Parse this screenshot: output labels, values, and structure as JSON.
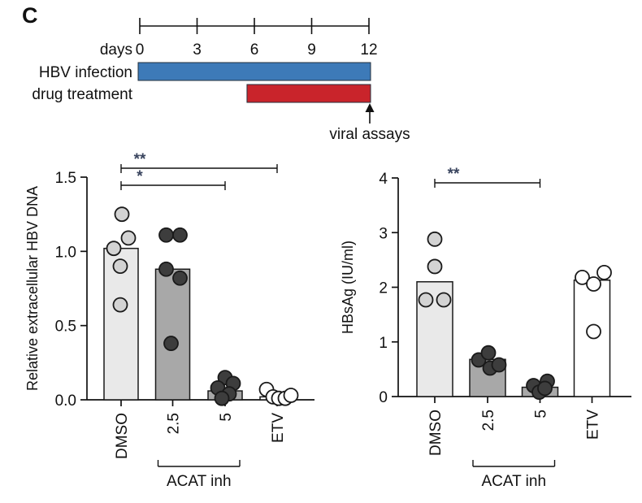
{
  "panel_label": "C",
  "timeline": {
    "axis_label": "days",
    "day_min": 0,
    "day_max": 12,
    "ticks": [
      0,
      3,
      6,
      9,
      12
    ],
    "rows": [
      {
        "label": "HBV infection",
        "start": 0,
        "end": 12,
        "color": "#3d7ab8"
      },
      {
        "label": "drug treatment",
        "start": 5.7,
        "end": 12,
        "color": "#c9242b"
      }
    ],
    "annotation": {
      "label": "viral assays",
      "day": 12
    }
  },
  "chart_data": [
    {
      "type": "bar",
      "id": "extracellular-hbv-dna",
      "ylabel": "Relative extracellular HBV DNA",
      "xlabel": "",
      "ylim": [
        0,
        1.5
      ],
      "yticks": [
        0.0,
        0.5,
        1.0,
        1.5
      ],
      "ytick_labels": [
        "0.0",
        "0.5",
        "1.0",
        "1.5"
      ],
      "categories": [
        "DMSO",
        "2.5",
        "5",
        "ETV"
      ],
      "bar_values": [
        1.02,
        0.88,
        0.06,
        0.02
      ],
      "bar_colors": [
        "#e9e9e9",
        "#a8a8a8",
        "#a8a8a8",
        "#ffffff"
      ],
      "point_colors": [
        "#d3d3d3",
        "#3d3d3d",
        "#3d3d3d",
        "#ffffff"
      ],
      "points": [
        [
          {
            "dx": 1,
            "v": 1.25
          },
          {
            "dx": 9,
            "v": 1.09
          },
          {
            "dx": -9,
            "v": 1.02
          },
          {
            "dx": -1,
            "v": 0.9
          },
          {
            "dx": -1,
            "v": 0.64
          }
        ],
        [
          {
            "dx": -8,
            "v": 1.11
          },
          {
            "dx": 9,
            "v": 1.11
          },
          {
            "dx": -8,
            "v": 0.88
          },
          {
            "dx": 9,
            "v": 0.82
          },
          {
            "dx": -2,
            "v": 0.38
          }
        ],
        [
          {
            "dx": 0,
            "v": 0.15
          },
          {
            "dx": 10,
            "v": 0.11
          },
          {
            "dx": -9,
            "v": 0.08
          },
          {
            "dx": 5,
            "v": 0.04
          },
          {
            "dx": -4,
            "v": 0.01
          }
        ],
        [
          {
            "dx": -13,
            "v": 0.07
          },
          {
            "dx": -5,
            "v": 0.02
          },
          {
            "dx": 2,
            "v": 0.01
          },
          {
            "dx": 10,
            "v": 0.01
          },
          {
            "dx": 17,
            "v": 0.03
          }
        ]
      ],
      "brackets": [
        {
          "from": 0,
          "to": 3,
          "label": "**"
        },
        {
          "from": 0,
          "to": 2,
          "label": "*"
        }
      ],
      "group_label": {
        "text": "ACAT inh",
        "from": 1,
        "to": 2
      },
      "legend": "none",
      "grid": false
    },
    {
      "type": "bar",
      "id": "hbsag",
      "ylabel": "HBsAg (IU/ml)",
      "xlabel": "",
      "ylim": [
        0,
        4
      ],
      "yticks": [
        0,
        1,
        2,
        3,
        4
      ],
      "ytick_labels": [
        "0",
        "1",
        "2",
        "3",
        "4"
      ],
      "categories": [
        "DMSO",
        "2.5",
        "5",
        "ETV"
      ],
      "bar_values": [
        2.1,
        0.68,
        0.17,
        2.13
      ],
      "bar_colors": [
        "#e9e9e9",
        "#a8a8a8",
        "#a8a8a8",
        "#ffffff"
      ],
      "point_colors": [
        "#d3d3d3",
        "#3d3d3d",
        "#3d3d3d",
        "#ffffff"
      ],
      "points": [
        [
          {
            "dx": 0,
            "v": 2.88
          },
          {
            "dx": 0,
            "v": 2.38
          },
          {
            "dx": -11,
            "v": 1.77
          },
          {
            "dx": 11,
            "v": 1.77
          }
        ],
        [
          {
            "dx": -11,
            "v": 0.67
          },
          {
            "dx": 1,
            "v": 0.8
          },
          {
            "dx": 3,
            "v": 0.52
          },
          {
            "dx": 14,
            "v": 0.58
          }
        ],
        [
          {
            "dx": -8,
            "v": 0.2
          },
          {
            "dx": 9,
            "v": 0.28
          },
          {
            "dx": -1,
            "v": 0.08
          },
          {
            "dx": 6,
            "v": 0.15
          }
        ],
        [
          {
            "dx": -12,
            "v": 2.18
          },
          {
            "dx": 15,
            "v": 2.27
          },
          {
            "dx": 2,
            "v": 2.06
          },
          {
            "dx": 2,
            "v": 1.19
          }
        ]
      ],
      "brackets": [
        {
          "from": 0,
          "to": 2,
          "label": "**"
        }
      ],
      "group_label": {
        "text": "ACAT inh",
        "from": 1,
        "to": 2
      },
      "legend": "none",
      "grid": false
    }
  ],
  "style": {
    "axis_color": "#111111",
    "point_stroke": "#1a1a1a",
    "sig_star_color": "#39445e"
  }
}
